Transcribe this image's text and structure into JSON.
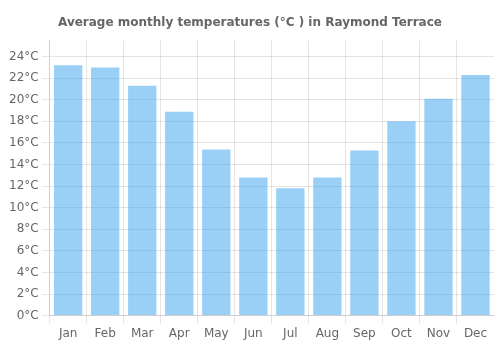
{
  "chart_data": {
    "type": "bar",
    "title": "Average monthly temperatures (°C ) in Raymond Terrace",
    "categories": [
      "Jan",
      "Feb",
      "Mar",
      "Apr",
      "May",
      "Jun",
      "Jul",
      "Aug",
      "Sep",
      "Oct",
      "Nov",
      "Dec"
    ],
    "values": [
      23.2,
      23.0,
      21.3,
      18.9,
      15.4,
      12.8,
      11.8,
      12.8,
      15.3,
      18.0,
      20.1,
      22.3
    ],
    "ylim": [
      0,
      25.5
    ],
    "yticks": [
      {
        "value": 0,
        "label": "0°C"
      },
      {
        "value": 2,
        "label": "2°C"
      },
      {
        "value": 4,
        "label": "4°C"
      },
      {
        "value": 6,
        "label": "6°C"
      },
      {
        "value": 8,
        "label": "8°C"
      },
      {
        "value": 10,
        "label": "10°C"
      },
      {
        "value": 12,
        "label": "12°C"
      },
      {
        "value": 14,
        "label": "14°C"
      },
      {
        "value": 16,
        "label": "16°C"
      },
      {
        "value": 18,
        "label": "18°C"
      },
      {
        "value": 20,
        "label": "20°C"
      },
      {
        "value": 22,
        "label": "22°C"
      },
      {
        "value": 24,
        "label": "24°C"
      }
    ],
    "grid": true
  }
}
